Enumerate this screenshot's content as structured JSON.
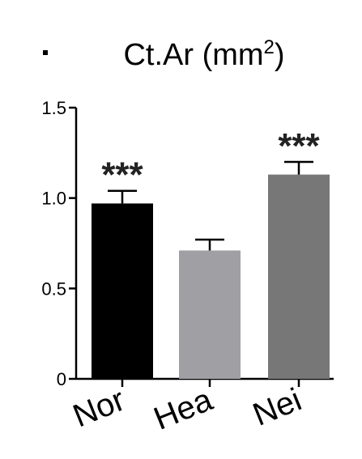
{
  "chart_data": {
    "type": "bar",
    "title": "Ct.Ar (mm",
    "title_superscript": "2",
    "title_suffix": ")",
    "categories": [
      "Nor",
      "Hea",
      "Nei"
    ],
    "values": [
      0.97,
      0.71,
      1.13
    ],
    "errors": [
      0.07,
      0.06,
      0.07
    ],
    "significance": [
      "***",
      "",
      "***"
    ],
    "bar_colors": [
      "#000000",
      "#a0a0a4",
      "#777777"
    ],
    "ylim": [
      0,
      1.5
    ],
    "yticks": [
      "0",
      "0.5",
      "1.0",
      "1.5"
    ],
    "xlabel": "",
    "ylabel": "",
    "grid": false
  }
}
